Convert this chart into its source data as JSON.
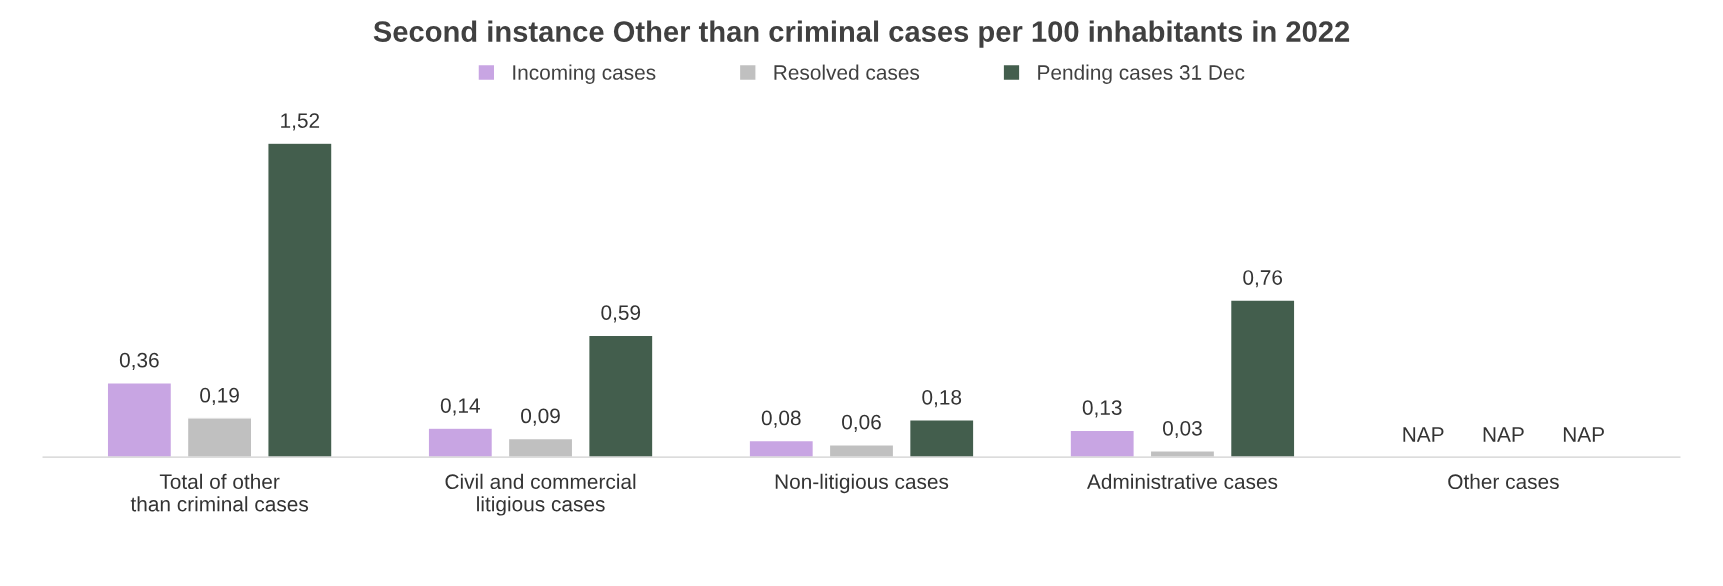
{
  "chart_data": {
    "type": "bar",
    "title": "Second instance Other than criminal cases per 100 inhabitants in 2022",
    "categories": [
      "Total of other\nthan criminal cases",
      "Civil and commercial\nlitigious cases",
      "Non-litigious cases",
      "Administrative cases",
      "Other cases"
    ],
    "series": [
      {
        "name": "Incoming cases",
        "color": "#c8a5e3",
        "values": [
          0.36,
          0.14,
          0.08,
          0.13,
          null
        ],
        "value_labels": [
          "0,36",
          "0,14",
          "0,08",
          "0,13",
          "NAP"
        ]
      },
      {
        "name": "Resolved cases",
        "color": "#c0c0c0",
        "values": [
          0.19,
          0.09,
          0.06,
          0.03,
          null
        ],
        "value_labels": [
          "0,19",
          "0,09",
          "0,06",
          "0,03",
          "NAP"
        ]
      },
      {
        "name": "Pending cases 31 Dec",
        "color": "#435e4d",
        "values": [
          1.52,
          0.59,
          0.18,
          0.76,
          null
        ],
        "value_labels": [
          "1,52",
          "0,59",
          "0,18",
          "0,76",
          "NAP"
        ]
      }
    ],
    "legend": "top",
    "grid": false,
    "tick_labels": "x"
  }
}
